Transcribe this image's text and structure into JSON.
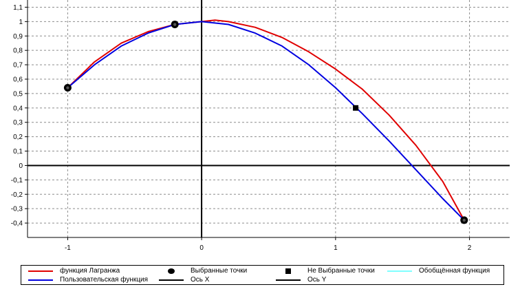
{
  "chart_data": {
    "type": "line",
    "xlim": [
      -1.3,
      2.3
    ],
    "ylim": [
      -0.5,
      1.15
    ],
    "x_ticks": [
      -1,
      0,
      1,
      2
    ],
    "x_tick_labels": [
      "-1",
      "0",
      "1",
      "2"
    ],
    "y_ticks": [
      1.1,
      1,
      0.9,
      0.8,
      0.7,
      0.6,
      0.5,
      0.4,
      0.3,
      0.2,
      0.1,
      0,
      -0.1,
      -0.2,
      -0.3,
      -0.4
    ],
    "y_tick_labels": [
      "1,1",
      "1",
      "0,9",
      "0,8",
      "0,7",
      "0,6",
      "0,5",
      "0,4",
      "0,3",
      "0,2",
      "0,1",
      "0",
      "-0,1",
      "-0,2",
      "-0,3",
      "-0,4"
    ],
    "grid": true,
    "legend_position": "bottom",
    "series": [
      {
        "name": "функция Лагранжа",
        "color": "#e00000",
        "x": [
          -1,
          -0.8,
          -0.6,
          -0.4,
          -0.2,
          0,
          0.1,
          0.2,
          0.4,
          0.6,
          0.8,
          1,
          1.2,
          1.4,
          1.6,
          1.8,
          1.96
        ],
        "y": [
          0.54,
          0.72,
          0.85,
          0.93,
          0.98,
          1.0,
          1.01,
          1.0,
          0.96,
          0.89,
          0.79,
          0.67,
          0.53,
          0.35,
          0.14,
          -0.11,
          -0.38
        ]
      },
      {
        "name": "Пользовательская функция",
        "color": "#0000e0",
        "x": [
          -1,
          -0.8,
          -0.6,
          -0.4,
          -0.2,
          0,
          0.2,
          0.4,
          0.6,
          0.8,
          1,
          1.2,
          1.4,
          1.6,
          1.8,
          1.96
        ],
        "y": [
          0.54,
          0.7,
          0.83,
          0.92,
          0.98,
          1.0,
          0.98,
          0.92,
          0.83,
          0.7,
          0.54,
          0.36,
          0.17,
          -0.03,
          -0.23,
          -0.38
        ]
      },
      {
        "name": "Выбранные точки",
        "marker": "circle",
        "color": "#000000",
        "x": [
          -1,
          -0.2,
          1.96
        ],
        "y": [
          0.54,
          0.98,
          -0.38
        ]
      },
      {
        "name": "Не Выбранные точки",
        "marker": "square",
        "color": "#000000",
        "x": [
          1.15
        ],
        "y": [
          0.4
        ]
      },
      {
        "name": "Обобщённая функция",
        "color": "#80ffff",
        "x": [],
        "y": []
      },
      {
        "name": "Ось X",
        "color": "#000000",
        "x": [
          -1.3,
          2.3
        ],
        "y": [
          0,
          0
        ]
      },
      {
        "name": "Ось Y",
        "color": "#000000",
        "x": [
          0,
          0
        ],
        "y": [
          -0.5,
          1.15
        ]
      }
    ]
  },
  "legend": {
    "items": [
      {
        "label": "функция Лагранжа",
        "symbol": "line",
        "color": "#e00000"
      },
      {
        "label": "Выбранные точки",
        "symbol": "circle",
        "color": "#000000"
      },
      {
        "label": "Не Выбранные точки",
        "symbol": "square",
        "color": "#000000"
      },
      {
        "label": "Обобщённая функция",
        "symbol": "line",
        "color": "#80ffff"
      },
      {
        "label": "Пользовательская функция",
        "symbol": "line",
        "color": "#0000e0"
      },
      {
        "label": "Ось X",
        "symbol": "line",
        "color": "#000000"
      },
      {
        "label": "Ось Y",
        "symbol": "line",
        "color": "#000000"
      }
    ]
  }
}
